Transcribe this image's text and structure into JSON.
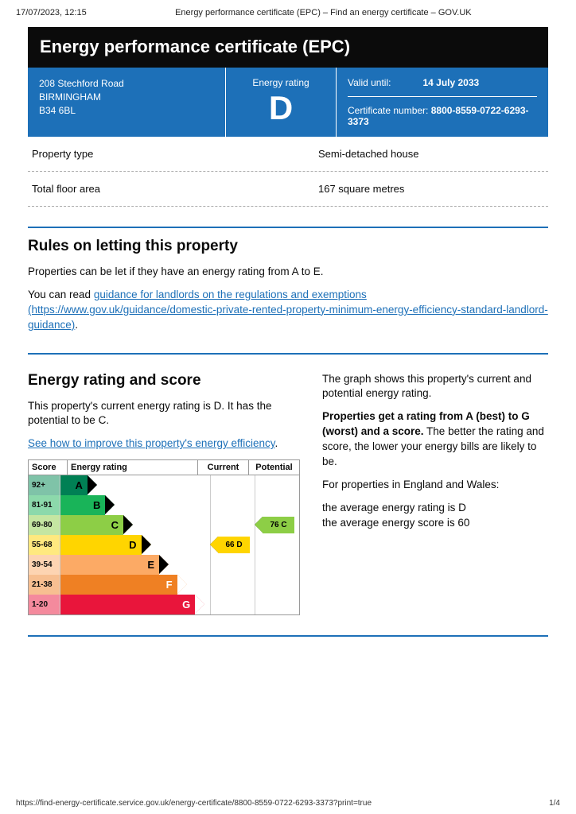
{
  "print": {
    "timestamp": "17/07/2023, 12:15",
    "docTitle": "Energy performance certificate (EPC) – Find an energy certificate – GOV.UK",
    "footerUrl": "https://find-energy-certificate.service.gov.uk/energy-certificate/8800-8559-0722-6293-3373?print=true",
    "pageNum": "1/4"
  },
  "header": {
    "title": "Energy performance certificate (EPC)",
    "addressLine1": "208 Stechford Road",
    "addressLine2": "BIRMINGHAM",
    "addressLine3": "B34 6BL",
    "ratingLabel": "Energy rating",
    "ratingLetter": "D",
    "validLabel": "Valid until:",
    "validDate": "14 July 2033",
    "certLabel": "Certificate number:",
    "certNumber": "8800-8559-0722-6293-3373"
  },
  "kv": {
    "propTypeLabel": "Property type",
    "propTypeValue": "Semi-detached house",
    "floorLabel": "Total floor area",
    "floorValue": "167 square metres"
  },
  "rules": {
    "heading": "Rules on letting this property",
    "p1": "Properties can be let if they have an energy rating from A to E.",
    "p2a": "You can read ",
    "link": "guidance for landlords on the regulations and exemptions (https://www.gov.uk/guidance/domestic-private-rented-property-minimum-energy-efficiency-standard-landlord-guidance)",
    "p2b": "."
  },
  "score": {
    "heading": "Energy rating and score",
    "leftP1": "This property's current energy rating is D. It has the potential to be C.",
    "leftLink": "See how to improve this property's energy efficiency",
    "leftLinkDot": ".",
    "rightP1": "The graph shows this property's current and potential energy rating.",
    "rightP2a": "Properties get a rating from A (best) to G (worst) and a score.",
    "rightP2b": " The better the rating and score, the lower your energy bills are likely to be.",
    "rightP3": "For properties in England and Wales:",
    "rightP4a": "the average energy rating is D",
    "rightP4b": "the average energy score is 60"
  },
  "chart": {
    "headScore": "Score",
    "headRating": "Energy rating",
    "headCurrent": "Current",
    "headPotential": "Potential",
    "bands": [
      {
        "range": "92+",
        "letter": "A",
        "color": "#008054",
        "scoreBg": "#7fc3a8",
        "widthPct": 18
      },
      {
        "range": "81-91",
        "letter": "B",
        "color": "#19b459",
        "scoreBg": "#8cd9ab",
        "widthPct": 30
      },
      {
        "range": "69-80",
        "letter": "C",
        "color": "#8dce46",
        "scoreBg": "#c5e6a2",
        "widthPct": 42
      },
      {
        "range": "55-68",
        "letter": "D",
        "color": "#ffd500",
        "scoreBg": "#ffe97f",
        "widthPct": 54
      },
      {
        "range": "39-54",
        "letter": "E",
        "color": "#fcaa65",
        "scoreBg": "#fdd4b2",
        "widthPct": 66
      },
      {
        "range": "21-38",
        "letter": "F",
        "color": "#ef8023",
        "scoreBg": "#f7bf91",
        "widthPct": 78
      },
      {
        "range": "1-20",
        "letter": "G",
        "color": "#e9153b",
        "scoreBg": "#f48a9d",
        "widthPct": 90
      }
    ],
    "current": {
      "bandIndex": 3,
      "label": "66  D",
      "bg": "#ffd500"
    },
    "potential": {
      "bandIndex": 2,
      "label": "76  C",
      "bg": "#8dce46"
    }
  }
}
